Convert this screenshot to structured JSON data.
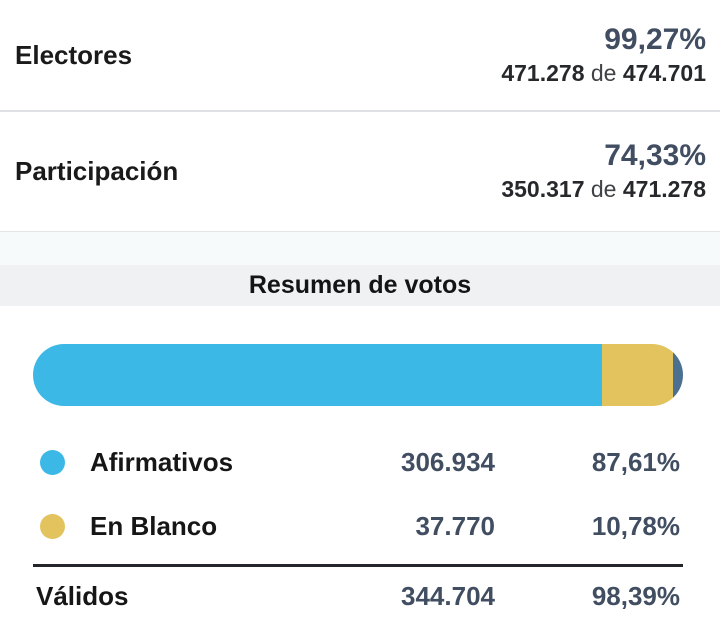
{
  "stats": [
    {
      "label": "Electores",
      "percent": "99,27%",
      "value": "471.278",
      "of_word": "de",
      "total": "474.701"
    },
    {
      "label": "Participación",
      "percent": "74,33%",
      "value": "350.317",
      "of_word": "de",
      "total": "471.278"
    }
  ],
  "summary": {
    "title": "Resumen de votos",
    "rows": [
      {
        "label": "Afirmativos",
        "count": "306.934",
        "percent": "87,61%",
        "color": "#3cb8e6"
      },
      {
        "label": "En Blanco",
        "count": "37.770",
        "percent": "10,78%",
        "color": "#e2c35d"
      }
    ],
    "totals": {
      "label": "Válidos",
      "count": "344.704",
      "percent": "98,39%"
    }
  },
  "chart_data": {
    "type": "bar",
    "stacked": true,
    "title": "Resumen de votos",
    "segments": [
      {
        "name": "Afirmativos",
        "value": 306934,
        "percent": 87.61,
        "color": "#3cb8e6"
      },
      {
        "name": "En Blanco",
        "value": 37770,
        "percent": 10.78,
        "color": "#e2c35d"
      },
      {
        "name": "",
        "percent": 1.61,
        "color": "#4c7090"
      }
    ],
    "colors": {
      "accent_blue": "#3cb8e6",
      "accent_gold": "#e2c35d",
      "accent_slate": "#4c7090",
      "text_slate": "#414d61"
    }
  }
}
